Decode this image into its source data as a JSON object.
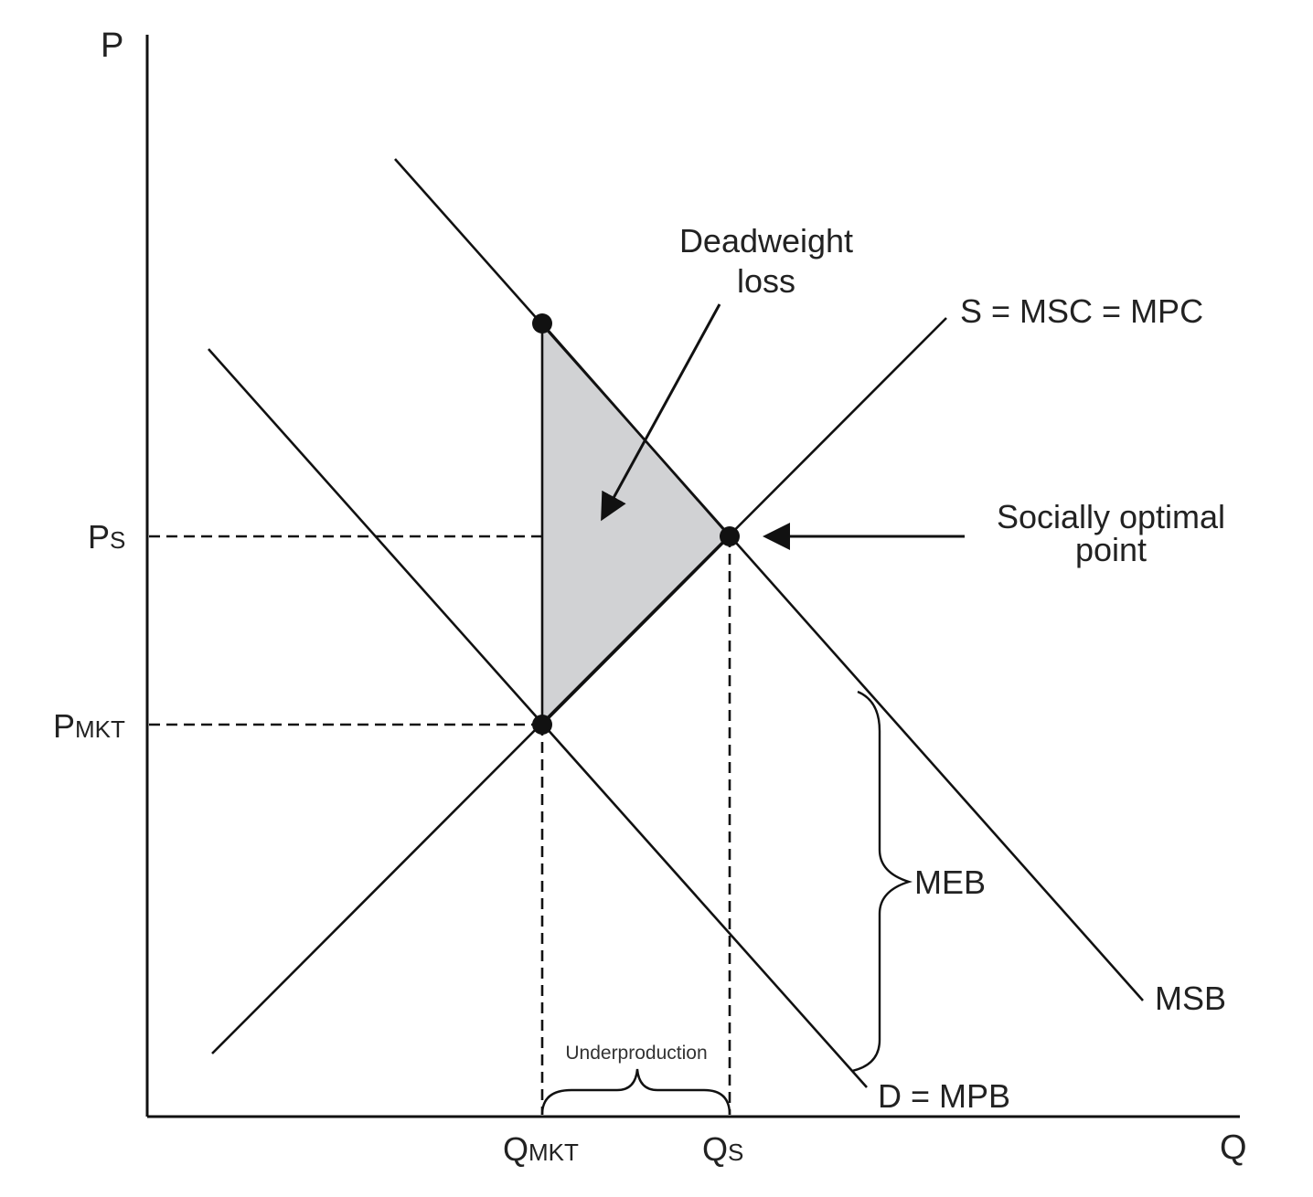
{
  "axes": {
    "y_label": "P",
    "x_label": "Q"
  },
  "price_labels": {
    "ps_main": "P",
    "ps_sub": "S",
    "pmkt_main": "P",
    "pmkt_sub": "MKT"
  },
  "quantity_labels": {
    "qmkt_main": "Q",
    "qmkt_sub": "MKT",
    "qs_main": "Q",
    "qs_sub": "S"
  },
  "curves": {
    "supply": "S = MSC = MPC",
    "demand": "D = MPB",
    "social_benefit": "MSB",
    "external_benefit": "MEB"
  },
  "annotations": {
    "deadweight_line1": "Deadweight",
    "deadweight_line2": "loss",
    "optimal_line1": "Socially optimal",
    "optimal_line2": "point",
    "underproduction": "Underproduction"
  },
  "colors": {
    "ink": "#111111",
    "deadweight_fill": "#d1d2d4"
  }
}
